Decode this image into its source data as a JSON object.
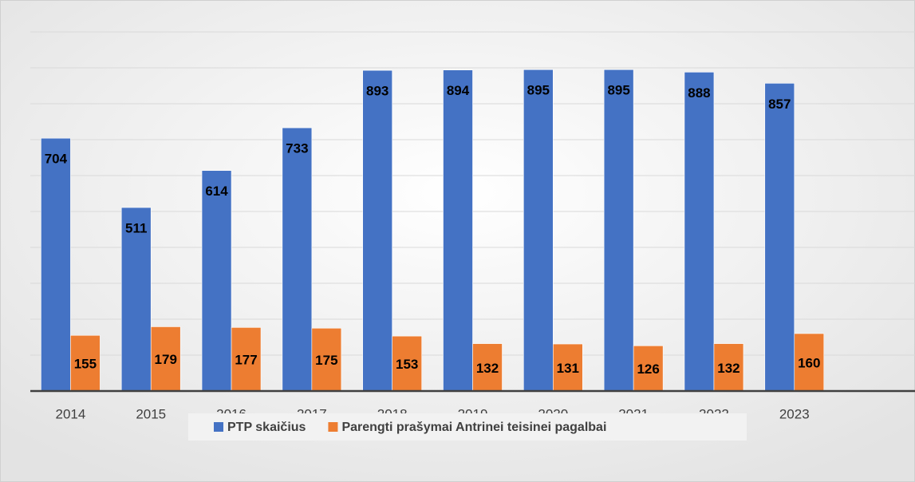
{
  "chart_data": {
    "type": "bar",
    "categories": [
      "2014",
      "2015",
      "2016",
      "2017",
      "2018",
      "2019",
      "2020",
      "2021",
      "2022",
      "2023",
      null
    ],
    "series": [
      {
        "name": "PTP skaičius",
        "color": "#4472c4",
        "values": [
          704,
          511,
          614,
          733,
          893,
          894,
          895,
          895,
          888,
          857,
          null
        ]
      },
      {
        "name": "Parengti prašymai Antrinei teisinei pagalbai",
        "color": "#ed7d31",
        "values": [
          155,
          179,
          177,
          175,
          153,
          132,
          131,
          126,
          132,
          160,
          null
        ]
      }
    ],
    "ylim": [
      0,
      1000
    ],
    "yticks": [
      0,
      100,
      200,
      300,
      400,
      500,
      600,
      700,
      800,
      900,
      1000
    ],
    "grid": true,
    "legend": "bottom"
  }
}
